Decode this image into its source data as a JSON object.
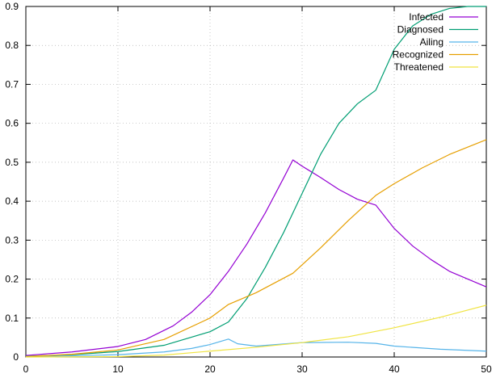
{
  "chart_data": {
    "type": "line",
    "title": "",
    "xlabel": "",
    "ylabel": "",
    "xlim": [
      0,
      50
    ],
    "ylim": [
      0,
      0.9
    ],
    "x_ticks": [
      0,
      10,
      20,
      30,
      40,
      50
    ],
    "x_tick_labels": [
      "0",
      "10",
      "20",
      "30",
      "40",
      "50"
    ],
    "y_ticks": [
      0,
      0.1,
      0.2,
      0.3,
      0.4,
      0.5,
      0.6,
      0.7,
      0.8,
      0.9
    ],
    "y_tick_labels": [
      "0",
      "0.1",
      "0.2",
      "0.3",
      "0.4",
      "0.5",
      "0.6",
      "0.7",
      "0.8",
      "0.9"
    ],
    "grid": true,
    "legend_position": "top-right",
    "series": [
      {
        "name": "Infected",
        "color": "#9400d3",
        "x": [
          0,
          5,
          10,
          13,
          16,
          18,
          20,
          22,
          24,
          26,
          28,
          29,
          30,
          32,
          34,
          36,
          38,
          40,
          42,
          44,
          46,
          48,
          50
        ],
        "y": [
          0.004,
          0.013,
          0.027,
          0.045,
          0.08,
          0.115,
          0.16,
          0.22,
          0.29,
          0.37,
          0.46,
          0.506,
          0.49,
          0.461,
          0.43,
          0.405,
          0.39,
          0.33,
          0.285,
          0.25,
          0.22,
          0.2,
          0.18
        ]
      },
      {
        "name": "Diagnosed",
        "color": "#009e73",
        "x": [
          0,
          5,
          10,
          15,
          20,
          22,
          24,
          26,
          28,
          30,
          32,
          34,
          36,
          38,
          40,
          42,
          44,
          46,
          48,
          50
        ],
        "y": [
          0.002,
          0.006,
          0.014,
          0.03,
          0.065,
          0.09,
          0.15,
          0.23,
          0.32,
          0.42,
          0.52,
          0.6,
          0.65,
          0.685,
          0.79,
          0.85,
          0.88,
          0.895,
          0.9,
          0.9
        ]
      },
      {
        "name": "Ailing",
        "color": "#56b4e9",
        "x": [
          0,
          5,
          10,
          15,
          18,
          20,
          22,
          23,
          25,
          30,
          35,
          38,
          40,
          45,
          50
        ],
        "y": [
          0.001,
          0.003,
          0.006,
          0.013,
          0.022,
          0.032,
          0.046,
          0.034,
          0.028,
          0.037,
          0.038,
          0.035,
          0.028,
          0.02,
          0.015
        ]
      },
      {
        "name": "Recognized",
        "color": "#e69f00",
        "x": [
          0,
          5,
          10,
          15,
          20,
          22,
          25,
          29,
          32,
          35,
          38,
          40,
          43,
          46,
          50
        ],
        "y": [
          0.001,
          0.007,
          0.018,
          0.045,
          0.1,
          0.135,
          0.165,
          0.215,
          0.28,
          0.35,
          0.415,
          0.445,
          0.485,
          0.52,
          0.558
        ]
      },
      {
        "name": "Threatened",
        "color": "#f0e442",
        "x": [
          0,
          10,
          15,
          20,
          25,
          30,
          35,
          40,
          45,
          50
        ],
        "y": [
          0.0,
          0.001,
          0.005,
          0.015,
          0.025,
          0.037,
          0.052,
          0.075,
          0.102,
          0.133
        ]
      }
    ]
  }
}
